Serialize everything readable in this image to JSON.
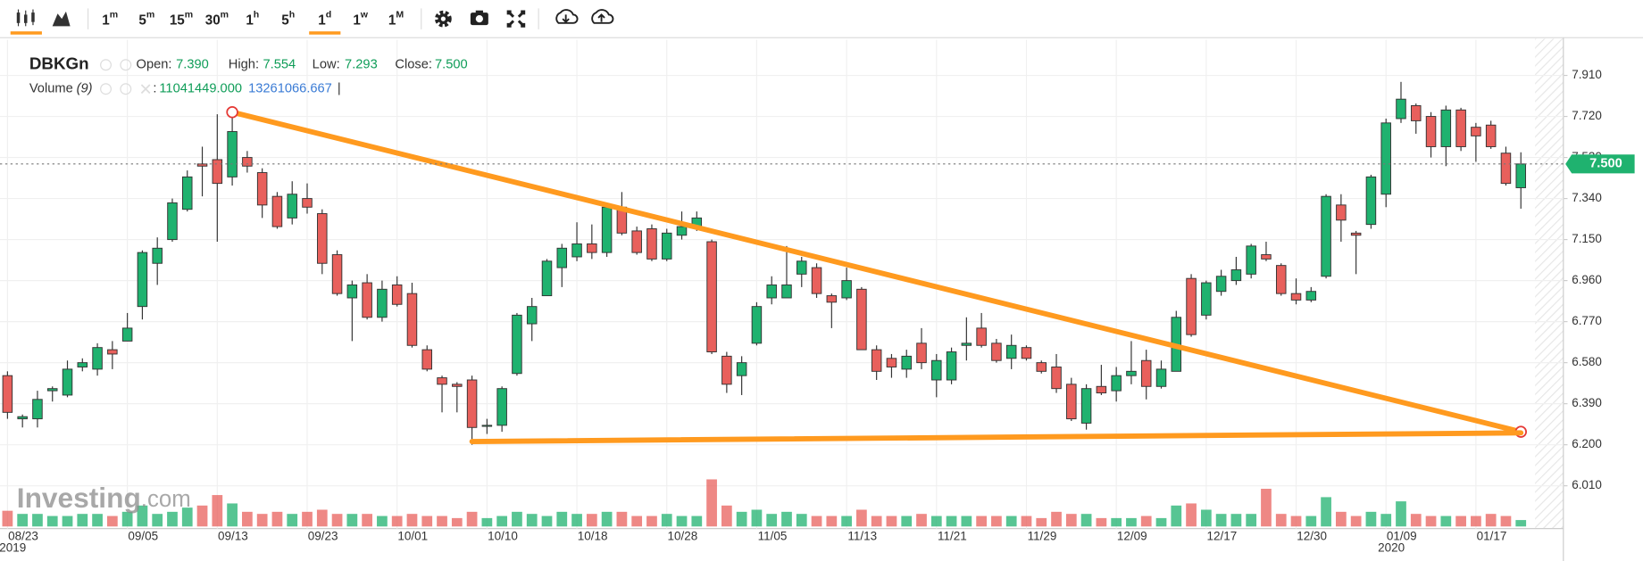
{
  "toolbar": {
    "intervals": [
      {
        "num": "1",
        "unit": "m"
      },
      {
        "num": "5",
        "unit": "m"
      },
      {
        "num": "15",
        "unit": "m"
      },
      {
        "num": "30",
        "unit": "m"
      },
      {
        "num": "1",
        "unit": "h"
      },
      {
        "num": "5",
        "unit": "h"
      },
      {
        "num": "1",
        "unit": "d",
        "active": true
      },
      {
        "num": "1",
        "unit": "w"
      },
      {
        "num": "1",
        "unit": "M"
      }
    ]
  },
  "chart_data": {
    "type": "candlestick",
    "symbol": "DBKGn",
    "legend_header": {
      "open_label": "Open:",
      "open": "7.390",
      "high_label": "High:",
      "high": "7.554",
      "low_label": "Low:",
      "low": "7.293",
      "close_label": "Close:",
      "close": "7.500",
      "volume_label": "Volume",
      "volume_period": "(9)",
      "separator": ":",
      "volume_value": "11041449.000",
      "volume_ma": "13261066.667",
      "end_mark": "|"
    },
    "watermark": {
      "main": "Investing",
      "suffix": ".com"
    },
    "up_color": "#1fb26f",
    "down_color": "#e8605c",
    "trendline_color": "#ff9a1f",
    "categories": [
      "08/23",
      null,
      null,
      null,
      null,
      null,
      null,
      null,
      "09/05",
      null,
      null,
      null,
      null,
      null,
      "09/13",
      null,
      null,
      null,
      null,
      null,
      "09/23",
      null,
      null,
      null,
      null,
      null,
      "10/01",
      null,
      null,
      null,
      null,
      null,
      "10/10",
      null,
      null,
      null,
      null,
      null,
      "10/18",
      null,
      null,
      null,
      null,
      null,
      "10/28",
      null,
      null,
      null,
      null,
      null,
      "11/05",
      null,
      null,
      null,
      null,
      null,
      "11/13",
      null,
      null,
      null,
      null,
      null,
      "11/21",
      null,
      null,
      null,
      null,
      null,
      "11/29",
      null,
      null,
      null,
      null,
      null,
      "12/09",
      null,
      null,
      null,
      null,
      null,
      "12/17",
      null,
      null,
      null,
      null,
      null,
      "12/30",
      null,
      null,
      null,
      null,
      null,
      "01/09",
      null,
      null,
      null,
      null,
      null,
      "01/17",
      null,
      null,
      null
    ],
    "year_labels": [
      "2019",
      null,
      null,
      null,
      null,
      null,
      null,
      null,
      null,
      null,
      null,
      null,
      null,
      null,
      null,
      null,
      null,
      null,
      null,
      null,
      null,
      null,
      null,
      null,
      null,
      null,
      null,
      null,
      null,
      null,
      null,
      null,
      null,
      null,
      null,
      null,
      null,
      null,
      null,
      null,
      null,
      null,
      null,
      null,
      null,
      null,
      null,
      null,
      null,
      null,
      null,
      null,
      null,
      null,
      null,
      null,
      null,
      null,
      null,
      null,
      null,
      null,
      null,
      null,
      null,
      null,
      null,
      null,
      null,
      null,
      null,
      null,
      null,
      null,
      null,
      null,
      null,
      null,
      null,
      null,
      null,
      null,
      null,
      null,
      null,
      null,
      null,
      null,
      null,
      null,
      null,
      null,
      "2020",
      null,
      null,
      null,
      null,
      null,
      null,
      null,
      null,
      null
    ],
    "open": [
      6.52,
      6.32,
      6.32,
      6.45,
      6.43,
      6.56,
      6.55,
      6.64,
      6.68,
      6.84,
      7.04,
      7.15,
      7.29,
      7.5,
      7.52,
      7.44,
      7.53,
      7.46,
      7.35,
      7.25,
      7.34,
      7.27,
      7.08,
      6.88,
      6.95,
      6.79,
      6.94,
      6.9,
      6.64,
      6.51,
      6.48,
      6.5,
      6.29,
      6.29,
      6.53,
      6.76,
      6.89,
      7.02,
      7.07,
      7.13,
      7.09,
      7.3,
      7.19,
      7.2,
      7.06,
      7.17,
      7.21,
      7.14,
      6.61,
      6.52,
      6.67,
      6.88,
      6.88,
      6.99,
      7.02,
      6.89,
      6.88,
      6.92,
      6.64,
      6.6,
      6.55,
      6.67,
      6.5,
      6.5,
      6.66,
      6.74,
      6.67,
      6.6,
      6.65,
      6.58,
      6.56,
      6.48,
      6.3,
      6.47,
      6.45,
      6.52,
      6.59,
      6.47,
      6.54,
      6.97,
      6.8,
      6.91,
      6.96,
      6.99,
      7.08,
      7.03,
      6.9,
      6.87,
      6.98,
      7.31,
      7.18,
      7.22,
      7.36,
      7.71,
      7.77,
      7.72,
      7.58,
      7.75,
      7.67,
      7.68,
      7.55,
      7.39
    ],
    "high": [
      6.54,
      6.34,
      6.45,
      6.47,
      6.59,
      6.6,
      6.67,
      6.68,
      6.81,
      7.1,
      7.16,
      7.34,
      7.47,
      7.58,
      7.73,
      7.72,
      7.56,
      7.48,
      7.37,
      7.42,
      7.41,
      7.29,
      7.1,
      6.96,
      6.99,
      6.96,
      6.98,
      6.95,
      6.66,
      6.52,
      6.49,
      6.52,
      6.32,
      6.47,
      6.81,
      6.88,
      7.06,
      7.13,
      7.23,
      7.22,
      7.31,
      7.37,
      7.21,
      7.22,
      7.2,
      7.28,
      7.28,
      7.15,
      6.63,
      6.61,
      6.86,
      6.98,
      7.12,
      7.07,
      7.04,
      6.9,
      7.02,
      6.93,
      6.66,
      6.62,
      6.64,
      6.74,
      6.62,
      6.65,
      6.79,
      6.81,
      6.69,
      6.71,
      6.66,
      6.59,
      6.62,
      6.51,
      6.48,
      6.57,
      6.56,
      6.68,
      6.64,
      6.59,
      6.82,
      6.99,
      6.96,
      7.01,
      7.07,
      7.13,
      7.14,
      7.04,
      6.97,
      6.93,
      7.36,
      7.36,
      7.19,
      7.45,
      7.71,
      7.88,
      7.78,
      7.74,
      7.77,
      7.76,
      7.69,
      7.7,
      7.58,
      7.554
    ],
    "low": [
      6.32,
      6.28,
      6.28,
      6.4,
      6.42,
      6.54,
      6.52,
      6.55,
      6.68,
      6.78,
      6.94,
      7.14,
      7.28,
      7.35,
      7.14,
      7.4,
      7.46,
      7.25,
      7.2,
      7.22,
      7.27,
      6.99,
      6.89,
      6.68,
      6.78,
      6.77,
      6.84,
      6.65,
      6.54,
      6.35,
      6.35,
      6.2,
      6.25,
      6.26,
      6.52,
      6.68,
      6.89,
      6.93,
      7.05,
      7.06,
      7.07,
      7.17,
      7.08,
      7.05,
      7.05,
      7.15,
      7.19,
      6.62,
      6.44,
      6.43,
      6.66,
      6.85,
      6.88,
      6.93,
      6.88,
      6.74,
      6.87,
      6.64,
      6.5,
      6.51,
      6.51,
      6.55,
      6.42,
      6.48,
      6.59,
      6.65,
      6.58,
      6.55,
      6.59,
      6.53,
      6.44,
      6.31,
      6.27,
      6.43,
      6.4,
      6.48,
      6.41,
      6.46,
      6.54,
      6.7,
      6.78,
      6.89,
      6.94,
      6.97,
      7.05,
      6.89,
      6.85,
      6.86,
      6.97,
      7.14,
      6.99,
      7.2,
      7.3,
      7.69,
      7.64,
      7.53,
      7.49,
      7.56,
      7.51,
      7.57,
      7.4,
      7.293
    ],
    "close": [
      6.35,
      6.33,
      6.41,
      6.46,
      6.55,
      6.58,
      6.65,
      6.62,
      6.74,
      7.09,
      7.11,
      7.32,
      7.44,
      7.49,
      7.41,
      7.65,
      7.49,
      7.31,
      7.21,
      7.36,
      7.3,
      7.04,
      6.9,
      6.94,
      6.79,
      6.92,
      6.85,
      6.66,
      6.55,
      6.48,
      6.47,
      6.28,
      6.29,
      6.46,
      6.8,
      6.84,
      7.05,
      7.11,
      7.13,
      7.09,
      7.3,
      7.18,
      7.09,
      7.06,
      7.18,
      7.21,
      7.25,
      6.63,
      6.48,
      6.58,
      6.84,
      6.94,
      6.94,
      7.05,
      6.9,
      6.86,
      6.96,
      6.64,
      6.54,
      6.56,
      6.61,
      6.58,
      6.59,
      6.63,
      6.67,
      6.66,
      6.59,
      6.66,
      6.6,
      6.54,
      6.46,
      6.32,
      6.46,
      6.44,
      6.52,
      6.54,
      6.47,
      6.55,
      6.79,
      6.71,
      6.95,
      6.98,
      7.01,
      7.12,
      7.06,
      6.9,
      6.87,
      6.91,
      7.35,
      7.24,
      7.17,
      7.44,
      7.69,
      7.8,
      7.7,
      7.58,
      7.75,
      7.58,
      7.63,
      7.58,
      7.41,
      7.5
    ],
    "volume": [
      27000000,
      21600000,
      21600000,
      18000000,
      18000000,
      21600000,
      21600000,
      18000000,
      25200000,
      36000000,
      21600000,
      25200000,
      32400000,
      36000000,
      54000000,
      39600000,
      25200000,
      21600000,
      25200000,
      21600000,
      25200000,
      28800000,
      21600000,
      21600000,
      21600000,
      18000000,
      18000000,
      21600000,
      18000000,
      18000000,
      14400000,
      25200000,
      14400000,
      18000000,
      25200000,
      21600000,
      18000000,
      25200000,
      21600000,
      21600000,
      25200000,
      25200000,
      18000000,
      18000000,
      21600000,
      18000000,
      18000000,
      81000000,
      36000000,
      25200000,
      28800000,
      21600000,
      25200000,
      21600000,
      18000000,
      18000000,
      18000000,
      28800000,
      18000000,
      18000000,
      18000000,
      21600000,
      18000000,
      18000000,
      18000000,
      18000000,
      18000000,
      18000000,
      18000000,
      14400000,
      25200000,
      21600000,
      21600000,
      14400000,
      14400000,
      14400000,
      18000000,
      14400000,
      36000000,
      39600000,
      28800000,
      21600000,
      21600000,
      21600000,
      64800000,
      21600000,
      18000000,
      18000000,
      50400000,
      25200000,
      18000000,
      25200000,
      21600000,
      43200000,
      21600000,
      18000000,
      18000000,
      18000000,
      18000000,
      21600000,
      18000000,
      11041449
    ],
    "ylim": [
      5.812,
      8.075
    ],
    "yticks": [
      {
        "value": 6.01,
        "label": "6.010"
      },
      {
        "value": 6.2,
        "label": "6.200"
      },
      {
        "value": 6.39,
        "label": "6.390"
      },
      {
        "value": 6.58,
        "label": "6.580"
      },
      {
        "value": 6.77,
        "label": "6.770"
      },
      {
        "value": 6.96,
        "label": "6.960"
      },
      {
        "value": 7.15,
        "label": "7.150"
      },
      {
        "value": 7.34,
        "label": "7.340"
      },
      {
        "value": 7.53,
        "label": "7.530"
      },
      {
        "value": 7.72,
        "label": "7.720"
      },
      {
        "value": 7.91,
        "label": "7.910"
      }
    ],
    "last_price": {
      "value": 7.5,
      "label": "7.500"
    },
    "trendlines": [
      {
        "start_index": 15,
        "start_price": 7.74,
        "end_index": 101,
        "end_price": 6.26,
        "endpoint_markers": true
      },
      {
        "start_index": 31,
        "start_price": 6.215,
        "end_index": 101,
        "end_price": 6.255,
        "endpoint_markers": false
      }
    ],
    "grid": true
  }
}
